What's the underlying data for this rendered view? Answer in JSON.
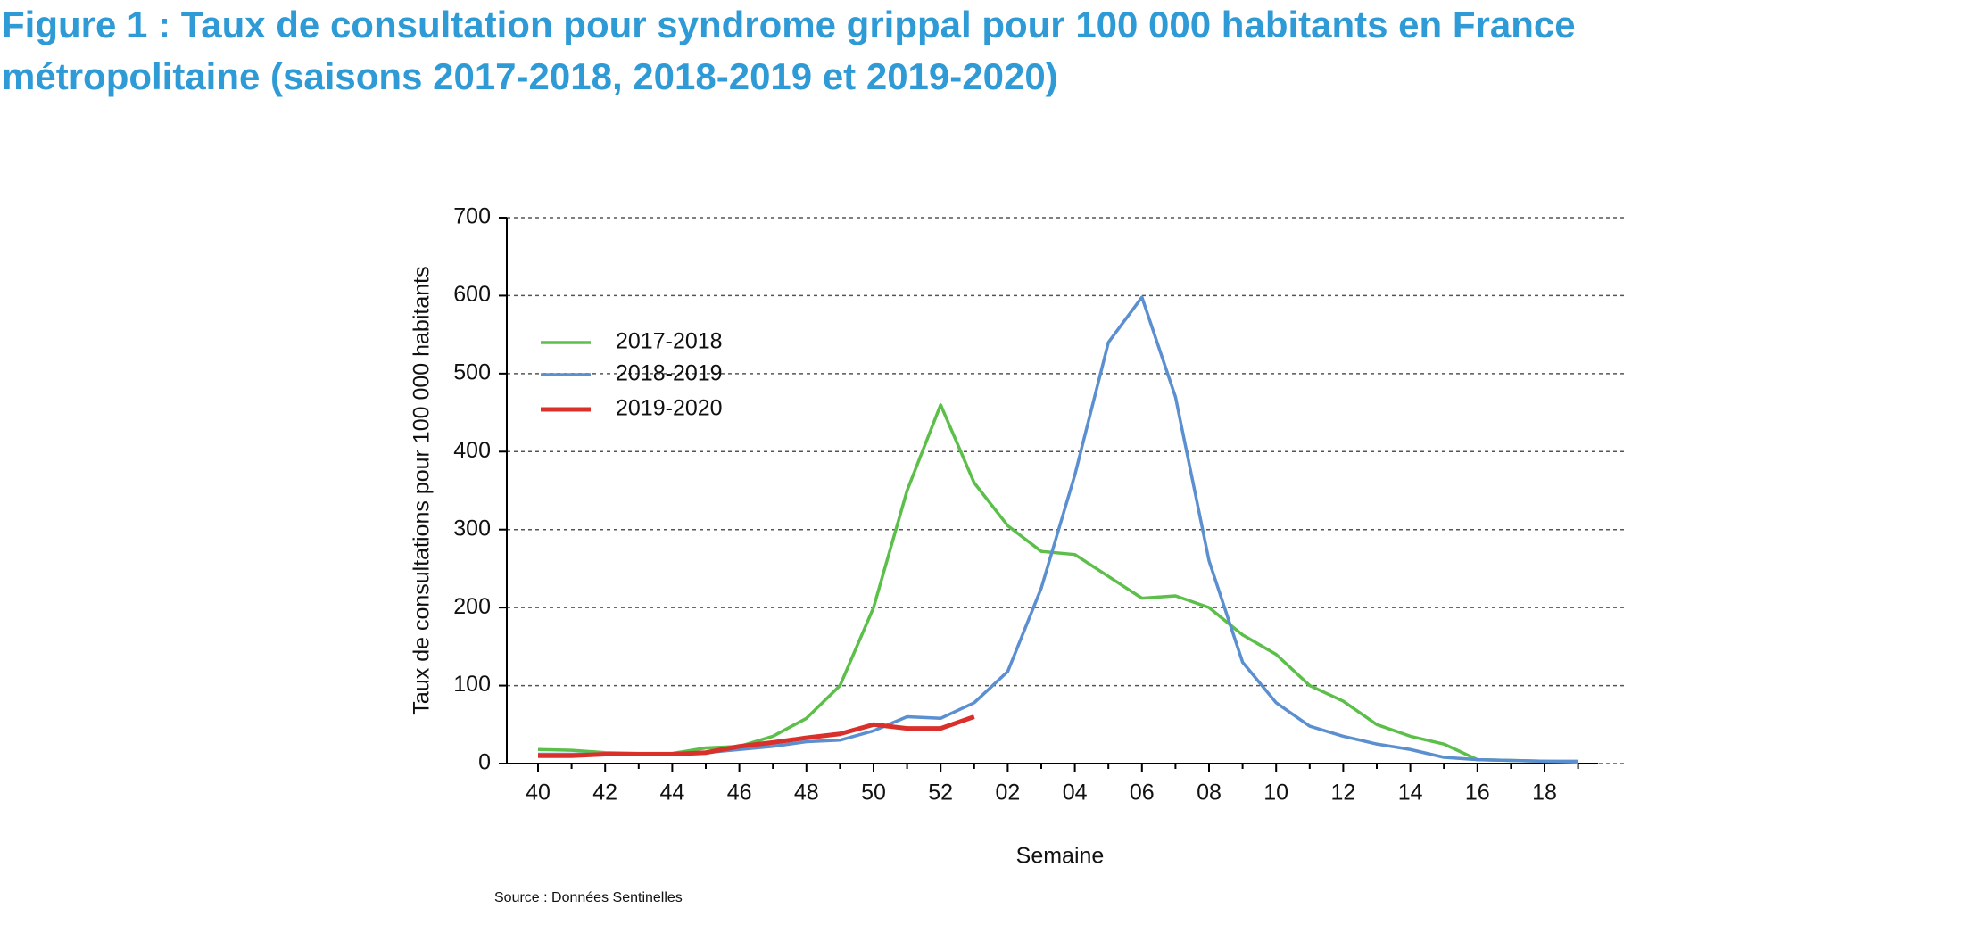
{
  "chart_data": {
    "type": "line",
    "title": "Figure 1 : Taux de consultation pour syndrome grippal pour 100 000 habitants en France",
    "subtitle": "métropolitaine (saisons 2017-2018, 2018-2019 et 2019-2020)",
    "x_label": "Semaine",
    "y_label": "Taux de consultations pour 100 000 habitants",
    "source": "Source : Données Sentinelles",
    "categories": [
      "40",
      null,
      "42",
      null,
      "44",
      null,
      "46",
      null,
      "48",
      null,
      "50",
      null,
      "52",
      null,
      "02",
      null,
      "04",
      null,
      "06",
      null,
      "08",
      null,
      "10",
      null,
      "12",
      null,
      "14",
      null,
      "16",
      null,
      "18",
      null
    ],
    "series": [
      {
        "name": "2017-2018",
        "color": "#5cbf4a",
        "values": [
          18,
          17,
          14,
          13,
          13,
          20,
          22,
          35,
          58,
          100,
          200,
          350,
          460,
          360,
          305,
          272,
          268,
          240,
          212,
          215,
          200,
          165,
          140,
          100,
          80,
          50,
          35,
          25,
          5,
          4,
          3,
          2
        ]
      },
      {
        "name": "2018-2019",
        "color": "#5b8fd0",
        "values": [
          12,
          12,
          12,
          12,
          12,
          14,
          18,
          22,
          28,
          30,
          42,
          60,
          58,
          78,
          118,
          225,
          370,
          540,
          598,
          470,
          260,
          130,
          78,
          48,
          35,
          25,
          18,
          8,
          5,
          4,
          3,
          3
        ]
      },
      {
        "name": "2019-2020",
        "color": "#d9302c",
        "values": [
          10,
          10,
          12,
          12,
          12,
          14,
          22,
          27,
          33,
          38,
          50,
          45,
          45,
          60,
          null,
          null,
          null,
          null,
          null,
          null,
          null,
          null,
          null,
          null,
          null,
          null,
          null,
          null,
          null,
          null,
          null,
          null
        ]
      }
    ],
    "ylim": [
      0,
      700
    ],
    "yticks": [
      0,
      100,
      200,
      300,
      400,
      500,
      600,
      700
    ],
    "grid": true,
    "legend": "upper left"
  }
}
